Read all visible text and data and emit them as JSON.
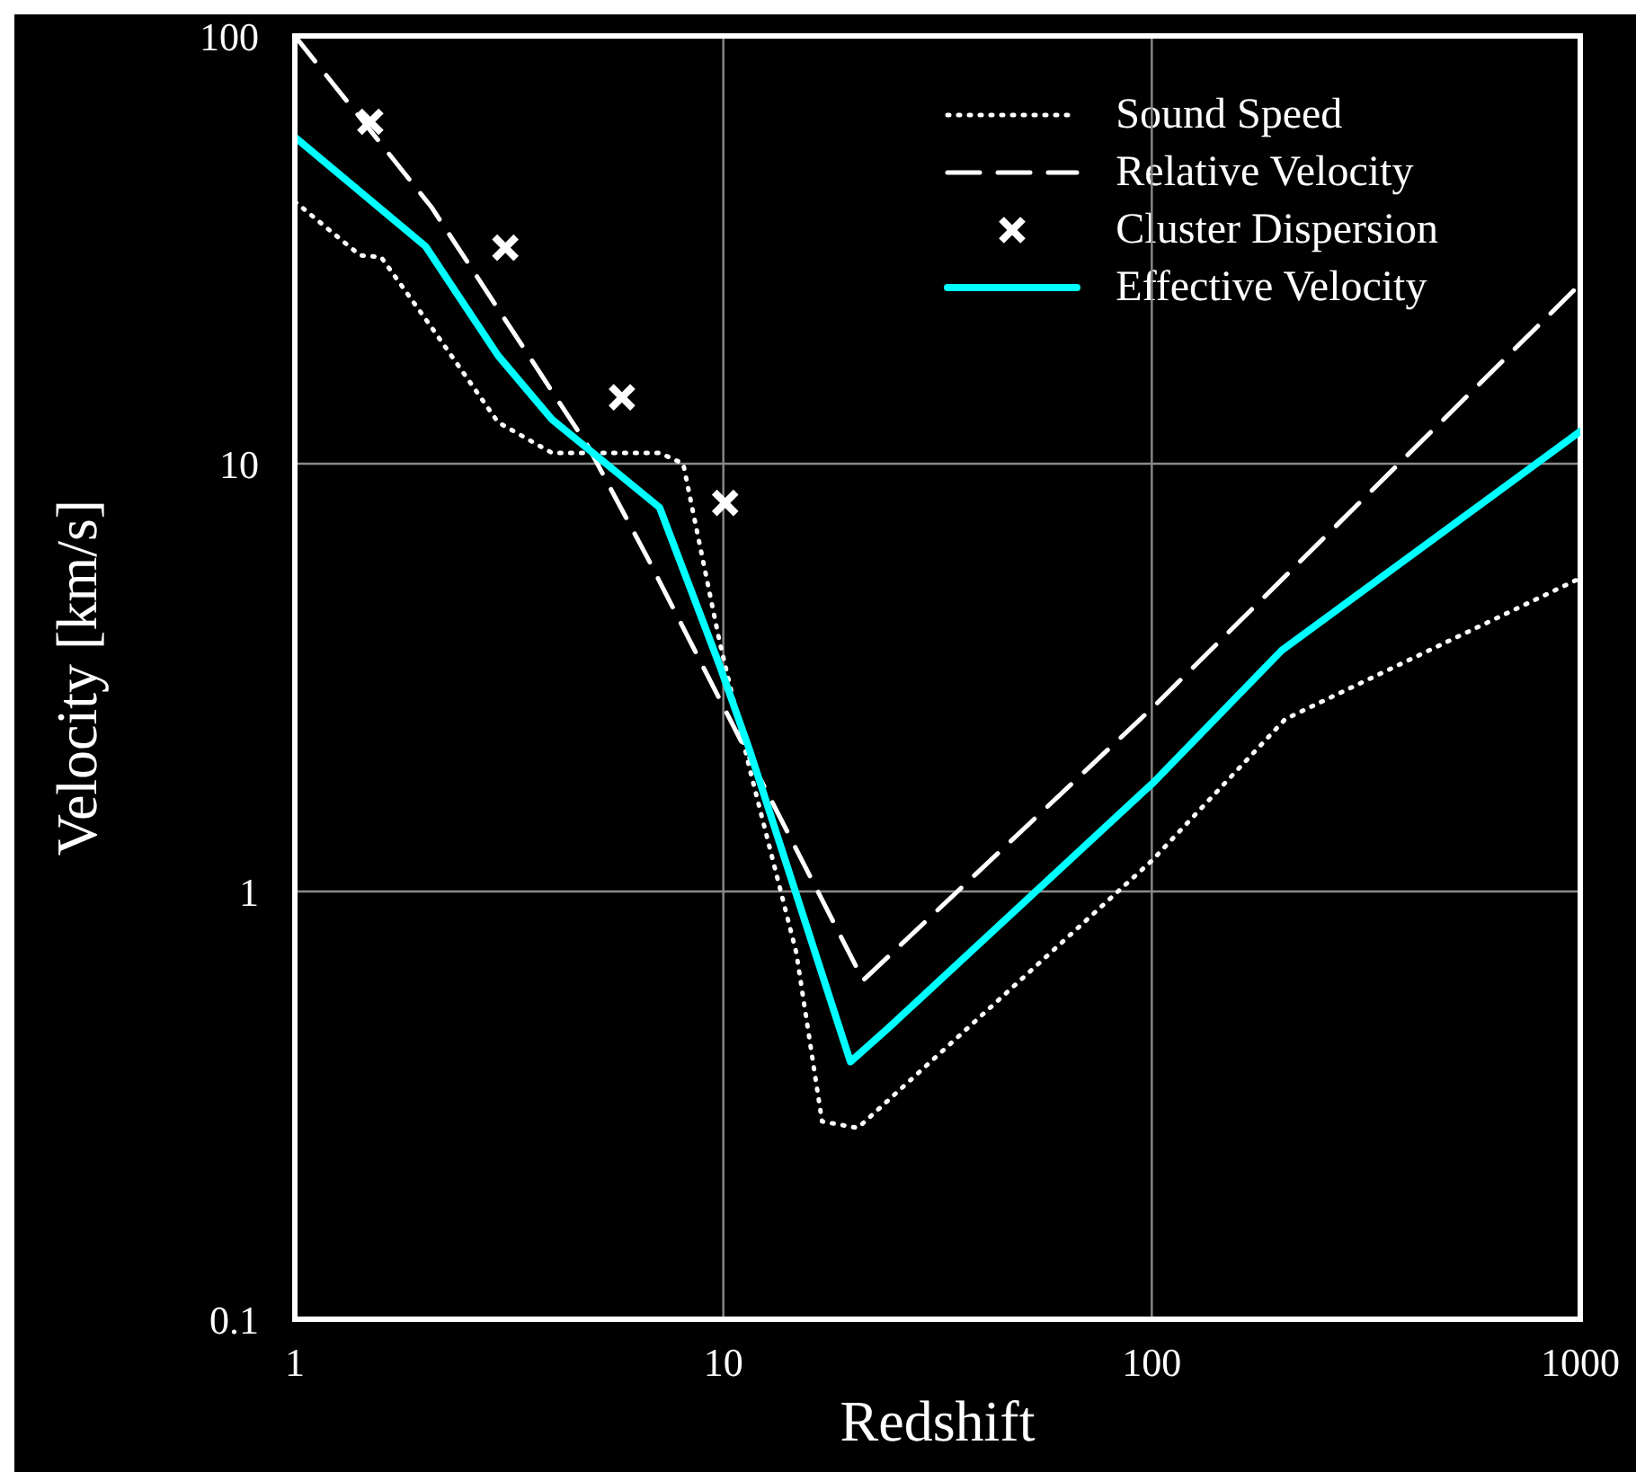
{
  "chart_data": {
    "type": "line",
    "xlabel": "Redshift",
    "ylabel": "Velocity [km/s]",
    "log": "xy",
    "xlim": [
      1,
      1000
    ],
    "xticks": [
      1,
      10,
      100,
      1000
    ],
    "ylim": [
      0.1,
      100
    ],
    "yticks": [
      0.1,
      1,
      10,
      100
    ],
    "grid": true,
    "legend": "top right",
    "series": [
      {
        "name": "Sound Speed",
        "line_style": "dotted",
        "color": "#ffffff",
        "x": [
          1,
          1.42,
          1.59,
          2.08,
          2.98,
          3.98,
          7.1,
          8.06,
          9.8,
          11.5,
          14.8,
          17,
          20.6,
          100,
          205,
          1000
        ],
        "values": [
          41,
          30.7,
          30.4,
          20.9,
          12.5,
          10.6,
          10.6,
          10,
          3.84,
          1.95,
          0.72,
          0.29,
          0.28,
          1.18,
          2.53,
          5.4
        ]
      },
      {
        "name": "Relative Velocity",
        "line_style": "dashed",
        "color": "#ffffff",
        "x": [
          1,
          2.08,
          4.83,
          6.64,
          21.2,
          100,
          1000
        ],
        "values": [
          100,
          39.9,
          11,
          6.05,
          0.62,
          2.68,
          26.3
        ]
      },
      {
        "name": "Cluster Dispersion",
        "type": "scatter",
        "marker": "cross",
        "color": "#ffffff",
        "x": [
          1.5,
          3.1,
          5.8,
          10.1
        ],
        "values": [
          63,
          32,
          14.3,
          8.1
        ]
      },
      {
        "name": "Effective Velocity",
        "line_style": "solid",
        "color": "#00ffff",
        "x": [
          1,
          2.02,
          2.98,
          3.98,
          7.1,
          9.8,
          11.5,
          19.8,
          24.3,
          101,
          201,
          1000
        ],
        "values": [
          58,
          32.2,
          17.9,
          12.7,
          7.9,
          3.38,
          2.15,
          0.4,
          0.48,
          1.8,
          3.66,
          11.9
        ]
      }
    ]
  }
}
